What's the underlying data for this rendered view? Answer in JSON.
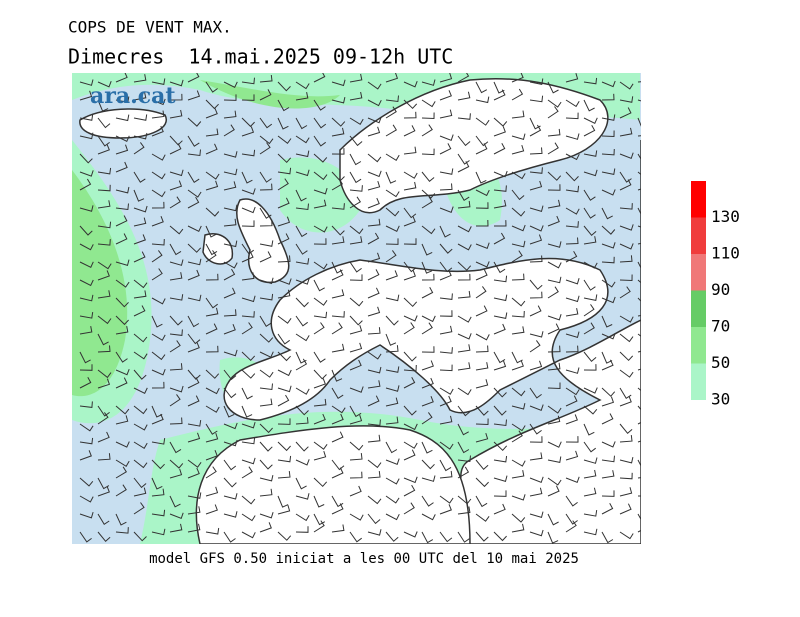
{
  "title": "COPS DE VENT MAX.",
  "subtitle": "Dimecres  14.mai.2025 09-12h UTC",
  "logo": "ara.cat",
  "footer": "model GFS 0.50 iniciat a les 00 UTC del 10 mai 2025",
  "legend": {
    "ticks": [
      30,
      50,
      70,
      90,
      110,
      130
    ],
    "colors": [
      "#aaf5c8",
      "#90e890",
      "#66cc66",
      "#f07878",
      "#f03c3c",
      "#ff0000"
    ]
  }
}
